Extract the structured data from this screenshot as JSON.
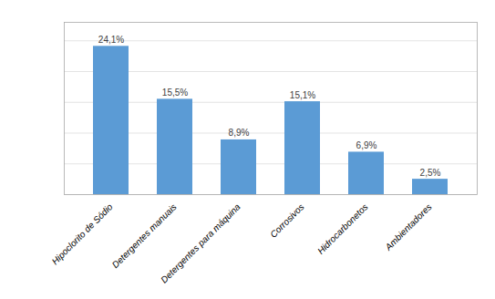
{
  "chart_data": {
    "type": "bar",
    "categories": [
      "Hipoclorito de Sódio",
      "Detergentes manuais",
      "Detergentes para máquina",
      "Corrosivos",
      "Hidrocarbonetos",
      "Ambientadores"
    ],
    "values": [
      24.1,
      15.5,
      8.9,
      15.1,
      6.9,
      2.5
    ],
    "value_labels": [
      "24,1%",
      "15,5%",
      "8,9%",
      "15,1%",
      "6,9%",
      "2,5%"
    ],
    "color": "#5B9BD5",
    "ylim": [
      0,
      28
    ],
    "yticks": [
      0,
      5,
      10,
      15,
      20,
      25
    ],
    "grid": true,
    "data_labels": true,
    "tick_labels": "x"
  }
}
